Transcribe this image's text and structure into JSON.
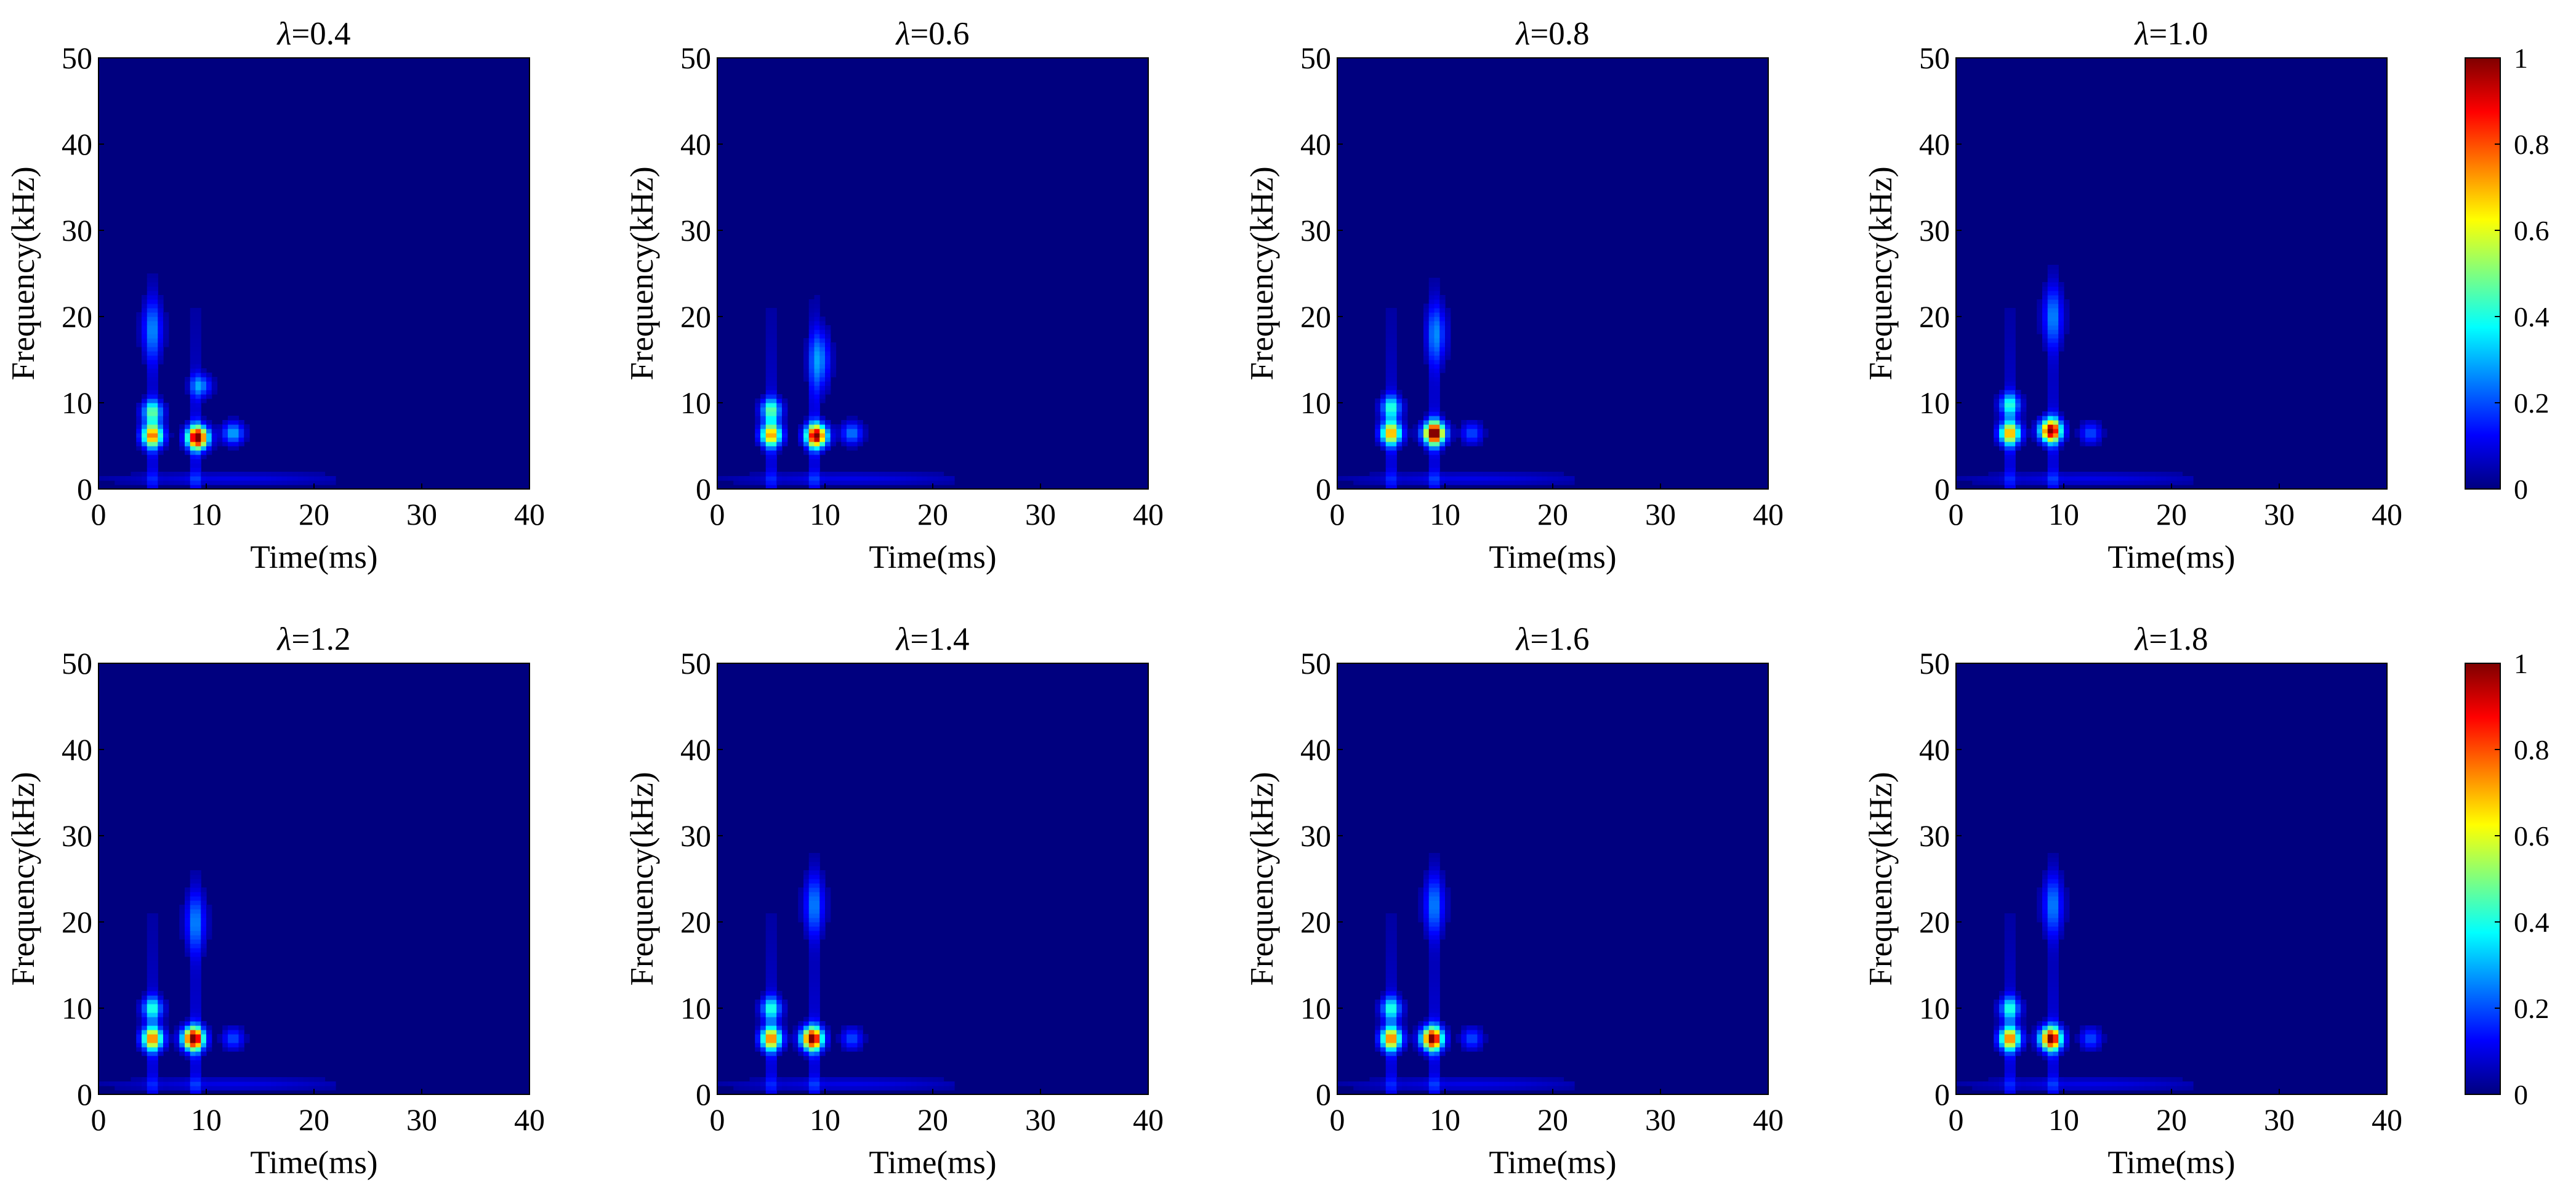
{
  "figure": {
    "colormap": "jet",
    "colormap_stops": [
      "#00007f",
      "#0000ff",
      "#007fff",
      "#00ffff",
      "#7fff7f",
      "#ffff00",
      "#ff7f00",
      "#ff0000",
      "#7f0000"
    ],
    "panel_background": "#00007f"
  },
  "chart_data": [
    {
      "type": "heatmap",
      "title_symbol": "λ",
      "title_value": "=0.4",
      "xlabel": "Time(ms)",
      "ylabel": "Frequency(kHz)",
      "xlim": [
        0,
        40
      ],
      "ylim": [
        0,
        50
      ],
      "xticks": [
        "0",
        "10",
        "20",
        "30",
        "40"
      ],
      "yticks": [
        "0",
        "10",
        "20",
        "30",
        "40",
        "50"
      ],
      "hotspots": [
        {
          "t": 5.0,
          "f": 6.2,
          "value": 0.7
        },
        {
          "t": 9.2,
          "f": 6.0,
          "value": 1.0
        },
        {
          "t": 5.0,
          "f": 9.0,
          "value": 0.4
        },
        {
          "t": 5.0,
          "f": 18.5,
          "value": 0.22
        },
        {
          "t": 9.5,
          "f": 12.0,
          "value": 0.25
        },
        {
          "t": 12.5,
          "f": 6.5,
          "value": 0.3
        }
      ]
    },
    {
      "type": "heatmap",
      "title_symbol": "λ",
      "title_value": "=0.6",
      "xlabel": "Time(ms)",
      "ylabel": "Frequency(kHz)",
      "xlim": [
        0,
        40
      ],
      "ylim": [
        0,
        50
      ],
      "xticks": [
        "0",
        "10",
        "20",
        "30",
        "40"
      ],
      "yticks": [
        "0",
        "10",
        "20",
        "30",
        "40",
        "50"
      ],
      "hotspots": [
        {
          "t": 5.0,
          "f": 6.3,
          "value": 0.65
        },
        {
          "t": 9.2,
          "f": 6.2,
          "value": 0.95
        },
        {
          "t": 5.0,
          "f": 9.2,
          "value": 0.4
        },
        {
          "t": 9.5,
          "f": 15.0,
          "value": 0.25
        },
        {
          "t": 12.5,
          "f": 6.5,
          "value": 0.25
        }
      ]
    },
    {
      "type": "heatmap",
      "title_symbol": "λ",
      "title_value": "=0.8",
      "xlabel": "Time(ms)",
      "ylabel": "Frequency(kHz)",
      "xlim": [
        0,
        40
      ],
      "ylim": [
        0,
        50
      ],
      "xticks": [
        "0",
        "10",
        "20",
        "30",
        "40"
      ],
      "yticks": [
        "0",
        "10",
        "20",
        "30",
        "40",
        "50"
      ],
      "hotspots": [
        {
          "t": 5.0,
          "f": 6.5,
          "value": 0.65
        },
        {
          "t": 9.0,
          "f": 6.5,
          "value": 1.0
        },
        {
          "t": 5.0,
          "f": 9.5,
          "value": 0.35
        },
        {
          "t": 9.2,
          "f": 18.0,
          "value": 0.22
        },
        {
          "t": 12.5,
          "f": 6.5,
          "value": 0.2
        }
      ]
    },
    {
      "type": "heatmap",
      "title_symbol": "λ",
      "title_value": "=1.0",
      "xlabel": "Time(ms)",
      "ylabel": "Frequency(kHz)",
      "xlim": [
        0,
        40
      ],
      "ylim": [
        0,
        50
      ],
      "xticks": [
        "0",
        "10",
        "20",
        "30",
        "40"
      ],
      "yticks": [
        "0",
        "10",
        "20",
        "30",
        "40",
        "50"
      ],
      "hotspots": [
        {
          "t": 5.0,
          "f": 6.5,
          "value": 0.65
        },
        {
          "t": 8.8,
          "f": 6.8,
          "value": 0.95
        },
        {
          "t": 5.0,
          "f": 9.8,
          "value": 0.35
        },
        {
          "t": 9.0,
          "f": 20.0,
          "value": 0.22
        },
        {
          "t": 12.5,
          "f": 6.5,
          "value": 0.2
        }
      ]
    },
    {
      "type": "heatmap",
      "title_symbol": "λ",
      "title_value": "=1.2",
      "xlabel": "Time(ms)",
      "ylabel": "Frequency(kHz)",
      "xlim": [
        0,
        40
      ],
      "ylim": [
        0,
        50
      ],
      "xticks": [
        "0",
        "10",
        "20",
        "30",
        "40"
      ],
      "yticks": [
        "0",
        "10",
        "20",
        "30",
        "40",
        "50"
      ],
      "hotspots": [
        {
          "t": 5.0,
          "f": 6.5,
          "value": 0.7
        },
        {
          "t": 8.8,
          "f": 6.5,
          "value": 1.0
        },
        {
          "t": 5.0,
          "f": 10.0,
          "value": 0.35
        },
        {
          "t": 9.0,
          "f": 20.0,
          "value": 0.22
        },
        {
          "t": 12.5,
          "f": 6.5,
          "value": 0.2
        }
      ]
    },
    {
      "type": "heatmap",
      "title_symbol": "λ",
      "title_value": "=1.4",
      "xlabel": "Time(ms)",
      "ylabel": "Frequency(kHz)",
      "xlim": [
        0,
        40
      ],
      "ylim": [
        0,
        50
      ],
      "xticks": [
        "0",
        "10",
        "20",
        "30",
        "40"
      ],
      "yticks": [
        "0",
        "10",
        "20",
        "30",
        "40",
        "50"
      ],
      "hotspots": [
        {
          "t": 5.0,
          "f": 6.5,
          "value": 0.7
        },
        {
          "t": 8.8,
          "f": 6.5,
          "value": 0.95
        },
        {
          "t": 5.0,
          "f": 10.0,
          "value": 0.35
        },
        {
          "t": 9.0,
          "f": 22.0,
          "value": 0.22
        },
        {
          "t": 12.5,
          "f": 6.5,
          "value": 0.2
        }
      ]
    },
    {
      "type": "heatmap",
      "title_symbol": "λ",
      "title_value": "=1.6",
      "xlabel": "Time(ms)",
      "ylabel": "Frequency(kHz)",
      "xlim": [
        0,
        40
      ],
      "ylim": [
        0,
        50
      ],
      "xticks": [
        "0",
        "10",
        "20",
        "30",
        "40"
      ],
      "yticks": [
        "0",
        "10",
        "20",
        "30",
        "40",
        "50"
      ],
      "hotspots": [
        {
          "t": 5.0,
          "f": 6.5,
          "value": 0.7
        },
        {
          "t": 8.8,
          "f": 6.5,
          "value": 0.95
        },
        {
          "t": 5.0,
          "f": 10.0,
          "value": 0.35
        },
        {
          "t": 9.0,
          "f": 22.0,
          "value": 0.22
        },
        {
          "t": 12.5,
          "f": 6.5,
          "value": 0.2
        }
      ]
    },
    {
      "type": "heatmap",
      "title_symbol": "λ",
      "title_value": "=1.8",
      "xlabel": "Time(ms)",
      "ylabel": "Frequency(kHz)",
      "xlim": [
        0,
        40
      ],
      "ylim": [
        0,
        50
      ],
      "xticks": [
        "0",
        "10",
        "20",
        "30",
        "40"
      ],
      "yticks": [
        "0",
        "10",
        "20",
        "30",
        "40",
        "50"
      ],
      "hotspots": [
        {
          "t": 5.0,
          "f": 6.5,
          "value": 0.7
        },
        {
          "t": 8.8,
          "f": 6.5,
          "value": 0.95
        },
        {
          "t": 5.0,
          "f": 10.0,
          "value": 0.35
        },
        {
          "t": 9.0,
          "f": 22.0,
          "value": 0.22
        },
        {
          "t": 12.5,
          "f": 6.5,
          "value": 0.2
        }
      ]
    }
  ],
  "colorbars": [
    {
      "range": [
        0,
        1
      ],
      "ticks": [
        "0",
        "0.2",
        "0.4",
        "0.6",
        "0.8",
        "1"
      ]
    },
    {
      "range": [
        0,
        1
      ],
      "ticks": [
        "0",
        "0.2",
        "0.4",
        "0.6",
        "0.8",
        "1"
      ]
    }
  ]
}
